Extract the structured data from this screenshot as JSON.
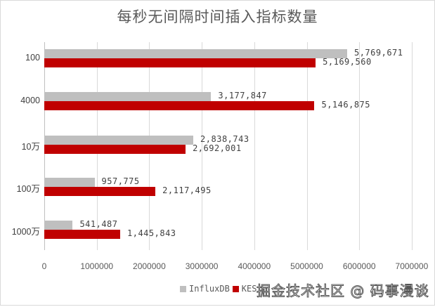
{
  "chart_data": {
    "type": "bar",
    "orientation": "horizontal",
    "title": "每秒无间隔时间插入指标数量",
    "categories": [
      "100",
      "4000",
      "10万",
      "100万",
      "1000万"
    ],
    "series": [
      {
        "name": "InfluxDB",
        "color": "#bfbfbf",
        "values": [
          5769671,
          3177847,
          2838743,
          957775,
          541487
        ],
        "labels": [
          "5,769,671",
          "3,177,847",
          "2,838,743",
          "957,775",
          "541,487"
        ]
      },
      {
        "name": "KES",
        "color": "#c00000",
        "values": [
          5169560,
          5146875,
          2692001,
          2117495,
          1445843
        ],
        "labels": [
          "5,169,560",
          "5,146,875",
          "2,692,001",
          "2,117,495",
          "1,445,843"
        ]
      }
    ],
    "xlabel": "",
    "ylabel": "",
    "xlim": [
      0,
      7000000
    ],
    "xticks": [
      "0",
      "1000000",
      "2000000",
      "3000000",
      "4000000",
      "5000000",
      "6000000",
      "7000000"
    ],
    "grid": true,
    "legend_position": "bottom-right"
  },
  "watermark": "掘金技术社区 @ 码事漫谈"
}
